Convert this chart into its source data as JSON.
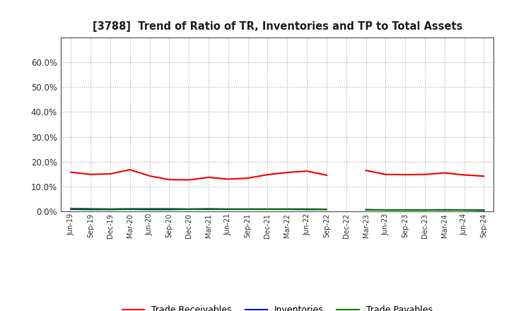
{
  "title": "[3788]  Trend of Ratio of TR, Inventories and TP to Total Assets",
  "x_labels": [
    "Jun-19",
    "Sep-19",
    "Dec-19",
    "Mar-20",
    "Jun-20",
    "Sep-20",
    "Dec-20",
    "Mar-21",
    "Jun-21",
    "Sep-21",
    "Dec-21",
    "Mar-22",
    "Jun-22",
    "Sep-22",
    "Dec-22",
    "Mar-23",
    "Jun-23",
    "Sep-23",
    "Dec-23",
    "Mar-24",
    "Jun-24",
    "Sep-24"
  ],
  "trade_receivables": [
    0.158,
    0.149,
    0.151,
    0.168,
    0.143,
    0.128,
    0.127,
    0.137,
    0.13,
    0.134,
    0.148,
    0.157,
    0.162,
    0.146,
    null,
    0.165,
    0.149,
    0.148,
    0.149,
    0.155,
    0.147,
    0.142
  ],
  "inventories": [
    0.009,
    0.008,
    0.008,
    0.009,
    0.008,
    0.008,
    0.009,
    0.009,
    0.009,
    0.009,
    0.009,
    0.009,
    0.008,
    0.008,
    null,
    0.007,
    0.006,
    0.006,
    0.006,
    0.006,
    0.006,
    0.005
  ],
  "trade_payables": [
    0.012,
    0.011,
    0.01,
    0.011,
    0.011,
    0.011,
    0.01,
    0.011,
    0.01,
    0.01,
    0.01,
    0.01,
    0.01,
    0.009,
    null,
    0.007,
    0.006,
    0.006,
    0.006,
    0.007,
    0.006,
    0.005
  ],
  "tr_color": "#FF0000",
  "inv_color": "#0000CD",
  "tp_color": "#008000",
  "ylim": [
    0.0,
    0.7
  ],
  "yticks": [
    0.0,
    0.1,
    0.2,
    0.3,
    0.4,
    0.5,
    0.6
  ],
  "bg_color": "#FFFFFF",
  "grid_color": "#AAAAAA",
  "legend_tr": "Trade Receivables",
  "legend_inv": "Inventories",
  "legend_tp": "Trade Payables"
}
